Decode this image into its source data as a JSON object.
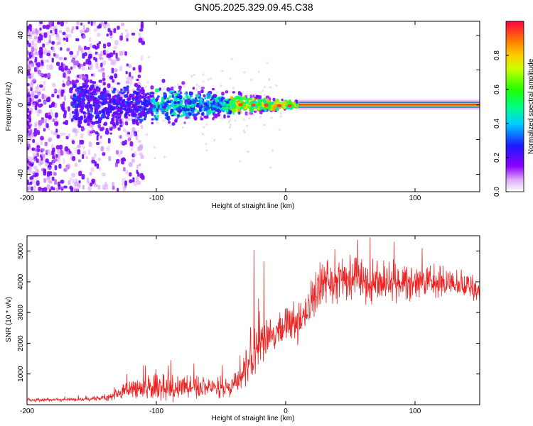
{
  "title": "GN05.2025.329.09.45.C38",
  "chart_data": [
    {
      "type": "heatmap",
      "xlabel": "Height of straight line (km)",
      "ylabel": "Frequency (Hz)",
      "xlim": [
        -200,
        150
      ],
      "ylim": [
        -50,
        48
      ],
      "x_ticks": [
        -200,
        -100,
        0,
        100
      ],
      "y_ticks": [
        -40,
        -20,
        0,
        20,
        40
      ],
      "colorbar": {
        "label": "Normalized spectral amplitude",
        "range": [
          0,
          1
        ],
        "ticks": [
          "0.0",
          "0.2",
          "0.4",
          "0.6",
          "0.8"
        ],
        "tick_values": [
          0,
          0.2,
          0.4,
          0.6,
          0.8
        ]
      },
      "features": {
        "noise_region_x": [
          -200,
          -120
        ],
        "cluster_region_x": [
          -165,
          10
        ],
        "carrier_line_x": [
          10,
          150
        ],
        "carrier_frequency_hz": 0
      }
    },
    {
      "type": "line",
      "xlabel": "Height of straight line (km)",
      "ylabel": "SNR (10 * v/v)",
      "xlim": [
        -200,
        150
      ],
      "ylim": [
        0,
        5500
      ],
      "x_ticks": [
        -200,
        -100,
        0,
        100
      ],
      "y_ticks": [
        1000,
        2000,
        3000,
        4000,
        5000
      ],
      "series": [
        {
          "name": "SNR",
          "color": "#ee2222",
          "x": [
            -200,
            -160,
            -140,
            -120,
            -100,
            -80,
            -60,
            -45,
            -35,
            -30,
            -25,
            -20,
            -15,
            -10,
            -5,
            0,
            5,
            10,
            15,
            20,
            25,
            30,
            40,
            50,
            60,
            80,
            100,
            120,
            150
          ],
          "y": [
            150,
            170,
            230,
            480,
            560,
            560,
            570,
            560,
            800,
            1250,
            1700,
            1900,
            2300,
            2400,
            2300,
            2500,
            2600,
            2700,
            3000,
            3300,
            3800,
            4000,
            4050,
            4100,
            4000,
            4000,
            4000,
            3950,
            3800
          ],
          "noise_amplitude": [
            50,
            60,
            100,
            300,
            420,
            400,
            380,
            330,
            400,
            550,
            650,
            700,
            600,
            550,
            500,
            550,
            600,
            600,
            650,
            650,
            700,
            750,
            750,
            700,
            650,
            600,
            550,
            500,
            400
          ]
        }
      ]
    }
  ]
}
